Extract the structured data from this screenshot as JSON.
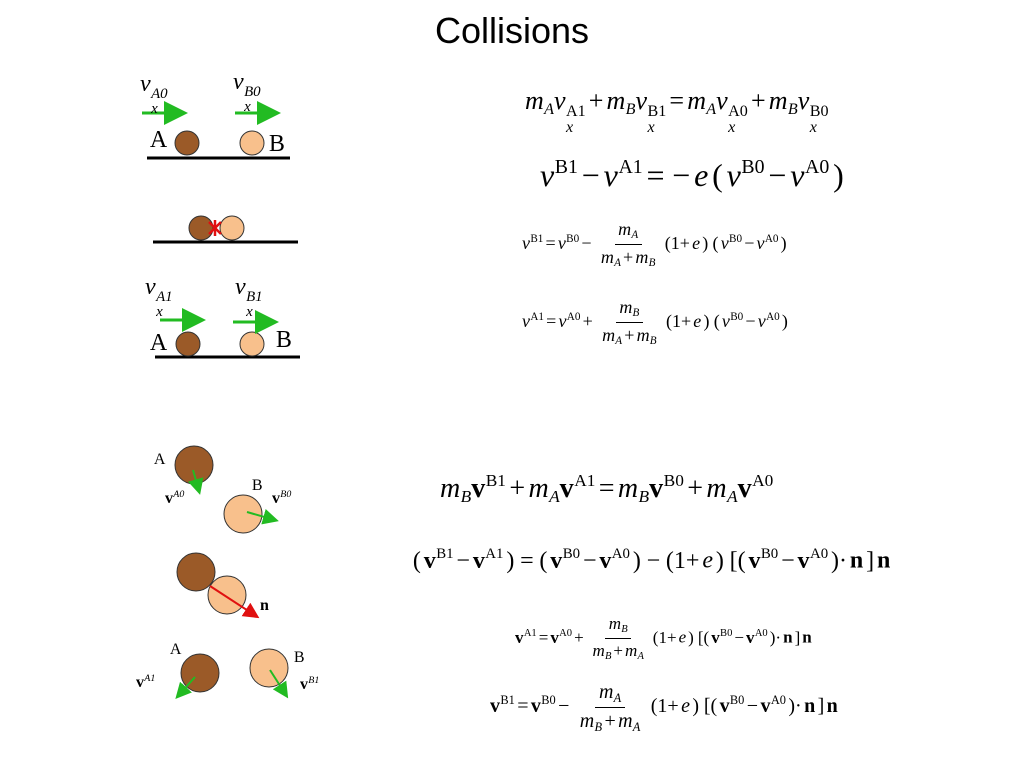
{
  "title": "Collisions",
  "equations": [
    [
      {
        "v": "m",
        "sub": "A"
      },
      {
        "v": "v",
        "sup": "A1",
        "sub": "x"
      },
      "+",
      {
        "v": "m",
        "sub": "B"
      },
      {
        "v": "v",
        "sup": "B1",
        "sub": "x"
      },
      "=",
      {
        "v": "m",
        "sub": "A"
      },
      {
        "v": "v",
        "sup": "A0",
        "sub": "x"
      },
      "+",
      {
        "v": "m",
        "sub": "B"
      },
      {
        "v": "v",
        "sup": "B0",
        "sub": "x"
      }
    ],
    [
      {
        "v": "v",
        "sup": "B1"
      },
      "−",
      {
        "v": "v",
        "sup": "A1"
      },
      "=",
      "−",
      {
        "v": "e"
      },
      "(",
      {
        "v": "v",
        "sup": "B0"
      },
      "−",
      {
        "v": "v",
        "sup": "A0"
      },
      ")"
    ],
    [
      {
        "v": "v",
        "sup": "B1"
      },
      "=",
      {
        "v": "v",
        "sup": "B0"
      },
      "−",
      {
        "num": [
          {
            "v": "m",
            "sub": "A"
          }
        ],
        "den": [
          {
            "v": "m",
            "sub": "A"
          },
          "+",
          {
            "v": "m",
            "sub": "B"
          }
        ]
      },
      "(1+",
      {
        "v": "e"
      },
      ")",
      "(",
      {
        "v": "v",
        "sup": "B0"
      },
      "−",
      {
        "v": "v",
        "sup": "A0"
      },
      ")"
    ],
    [
      {
        "v": "v",
        "sup": "A1"
      },
      "=",
      {
        "v": "v",
        "sup": "A0"
      },
      "+",
      {
        "num": [
          {
            "v": "m",
            "sub": "B"
          }
        ],
        "den": [
          {
            "v": "m",
            "sub": "A"
          },
          "+",
          {
            "v": "m",
            "sub": "B"
          }
        ]
      },
      "(1+",
      {
        "v": "e"
      },
      ")",
      "(",
      {
        "v": "v",
        "sup": "B0"
      },
      "−",
      {
        "v": "v",
        "sup": "A0"
      },
      ")"
    ],
    [
      {
        "v": "m",
        "sub": "B"
      },
      {
        "bold": "v",
        "sup": "B1"
      },
      "+",
      {
        "v": "m",
        "sub": "A"
      },
      {
        "bold": "v",
        "sup": "A1"
      },
      "=",
      {
        "v": "m",
        "sub": "B"
      },
      {
        "bold": "v",
        "sup": "B0"
      },
      "+",
      {
        "v": "m",
        "sub": "A"
      },
      {
        "bold": "v",
        "sup": "A0"
      }
    ],
    [
      "(",
      {
        "bold": "v",
        "sup": "B1"
      },
      "−",
      {
        "bold": "v",
        "sup": "A1"
      },
      ")",
      "=",
      "(",
      {
        "bold": "v",
        "sup": "B0"
      },
      "−",
      {
        "bold": "v",
        "sup": "A0"
      },
      ")",
      "−",
      "(1+",
      {
        "v": "e"
      },
      ")",
      "[(",
      {
        "bold": "v",
        "sup": "B0"
      },
      "−",
      {
        "bold": "v",
        "sup": "A0"
      },
      ")·",
      {
        "bold": "n"
      },
      "]",
      {
        "bold": "n"
      }
    ],
    [
      {
        "bold": "v",
        "sup": "A1"
      },
      "=",
      {
        "bold": "v",
        "sup": "A0"
      },
      "+",
      {
        "num": [
          {
            "v": "m",
            "sub": "B"
          }
        ],
        "den": [
          {
            "v": "m",
            "sub": "B"
          },
          "+",
          {
            "v": "m",
            "sub": "A"
          }
        ]
      },
      "(1+",
      {
        "v": "e"
      },
      ")",
      "[(",
      {
        "bold": "v",
        "sup": "B0"
      },
      "−",
      {
        "bold": "v",
        "sup": "A0"
      },
      ")·",
      {
        "bold": "n"
      },
      "]",
      {
        "bold": "n"
      }
    ],
    [
      {
        "bold": "v",
        "sup": "B1"
      },
      "=",
      {
        "bold": "v",
        "sup": "B0"
      },
      "−",
      {
        "num": [
          {
            "v": "m",
            "sub": "A"
          }
        ],
        "den": [
          {
            "v": "m",
            "sub": "B"
          },
          "+",
          {
            "v": "m",
            "sub": "A"
          }
        ]
      },
      "(1+",
      {
        "v": "e"
      },
      ")",
      "[(",
      {
        "bold": "v",
        "sup": "B0"
      },
      "−",
      {
        "bold": "v",
        "sup": "A0"
      },
      ")·",
      {
        "bold": "n"
      },
      "]",
      {
        "bold": "n"
      }
    ]
  ],
  "labels": [
    [
      {
        "v": "v",
        "sup": "A0",
        "sub": "x"
      }
    ],
    [
      {
        "v": "v",
        "sup": "B0",
        "sub": "x"
      }
    ],
    [
      "A"
    ],
    [
      "B"
    ],
    [
      {
        "v": "v",
        "sup": "A1",
        "sub": "x"
      }
    ],
    [
      {
        "v": "v",
        "sup": "B1",
        "sub": "x"
      }
    ],
    [
      "A"
    ],
    [
      "B"
    ],
    [
      "A"
    ],
    [
      {
        "bold": "v",
        "sup": "A0"
      }
    ],
    [
      "B"
    ],
    [
      {
        "bold": "v",
        "sup": "B0"
      }
    ],
    [
      {
        "bold": "n"
      }
    ],
    [
      "A"
    ],
    [
      {
        "bold": "v",
        "sup": "A1"
      }
    ],
    [
      "B"
    ],
    [
      {
        "bold": "v",
        "sup": "B1"
      }
    ]
  ]
}
